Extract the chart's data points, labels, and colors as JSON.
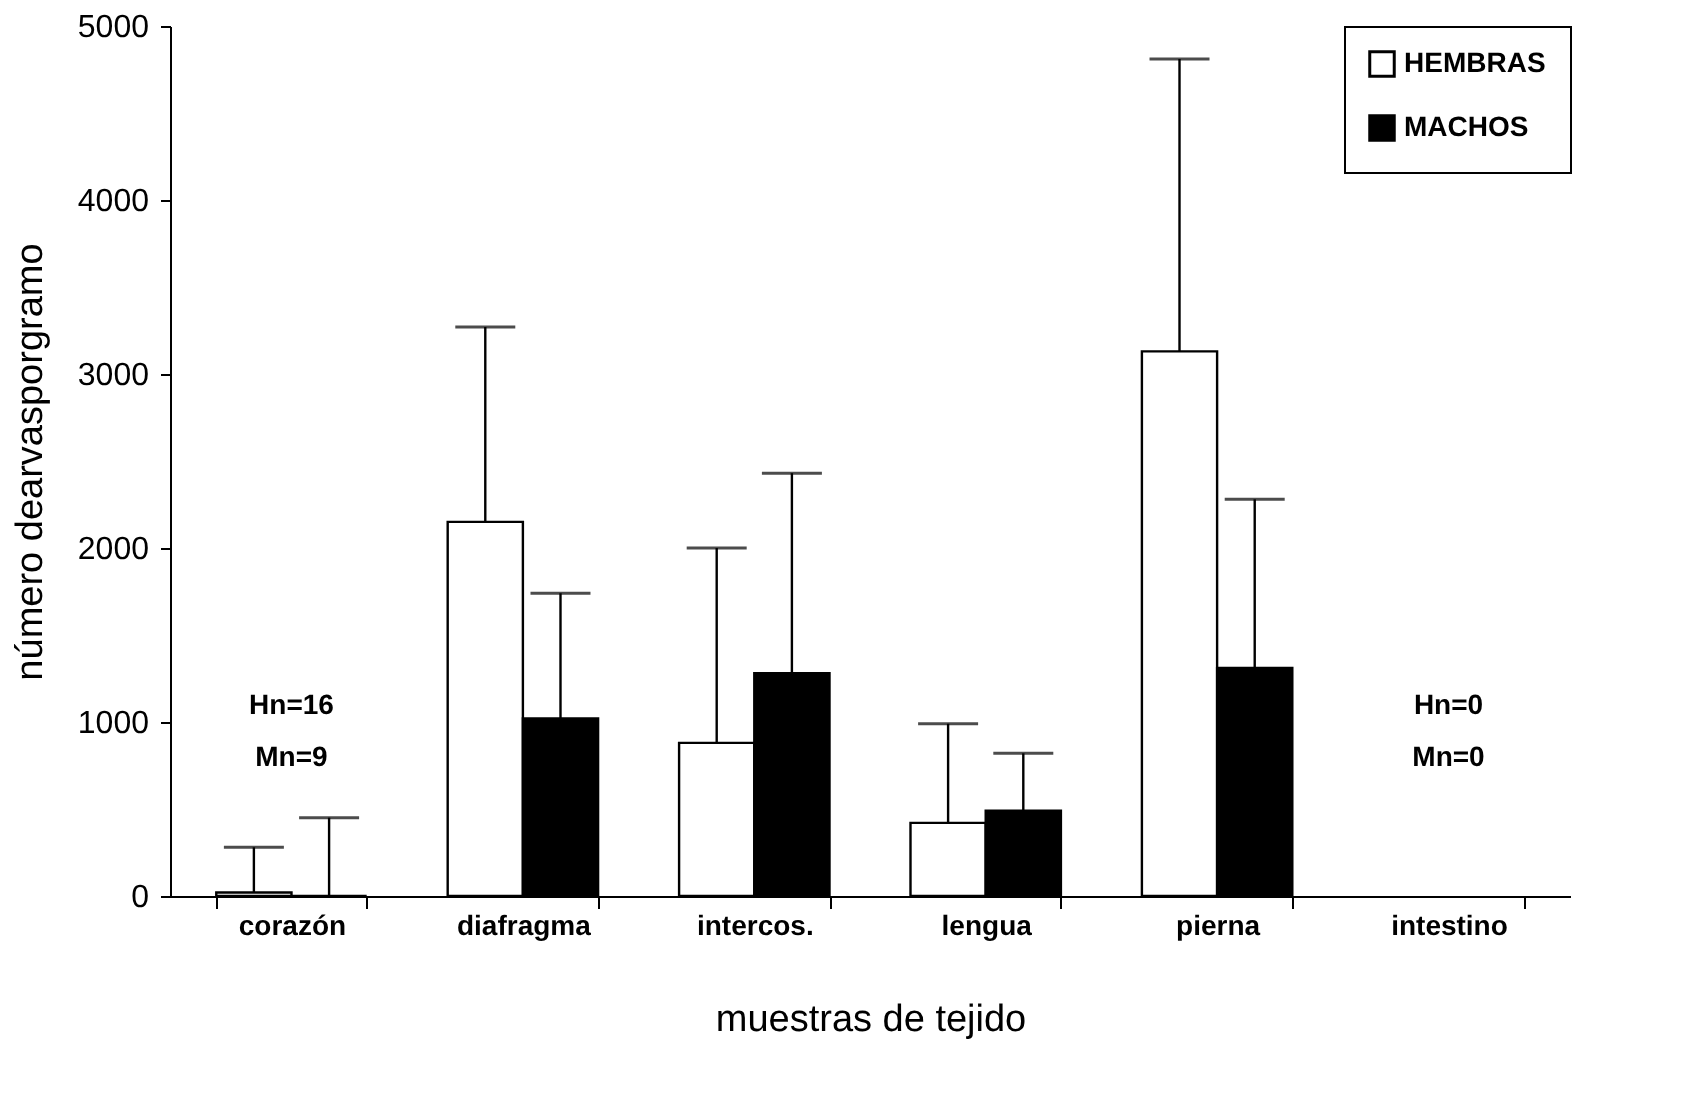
{
  "chart_data": {
    "type": "bar",
    "xlabel": "muestras de tejido",
    "ylabel": "número dearvasporgramo",
    "categories": [
      "corazón",
      "diafragma",
      "intercos.",
      "lengua",
      "pierna",
      "intestino"
    ],
    "series": [
      {
        "name": "HEMBRAS",
        "color": "#ffffff",
        "values": [
          20,
          2150,
          880,
          420,
          3130,
          0
        ],
        "errors": [
          [
            20,
            280
          ],
          [
            2150,
            3270
          ],
          [
            880,
            2000
          ],
          [
            420,
            990
          ],
          [
            3130,
            4810
          ],
          null
        ]
      },
      {
        "name": "MACHOS",
        "color": "#000000",
        "values": [
          0,
          1020,
          1280,
          490,
          1310,
          0
        ],
        "errors": [
          [
            0,
            450
          ],
          [
            1020,
            1740
          ],
          [
            1280,
            2430
          ],
          [
            490,
            820
          ],
          [
            1310,
            2280
          ],
          null
        ]
      }
    ],
    "ylim": [
      0,
      5000
    ],
    "yticks": [
      0,
      1000,
      2000,
      3000,
      4000,
      5000
    ],
    "grid": false,
    "legend": "top right",
    "annotations": [
      "Hn=16",
      "Mn=9",
      "Hn=0",
      "Mn=0"
    ]
  }
}
